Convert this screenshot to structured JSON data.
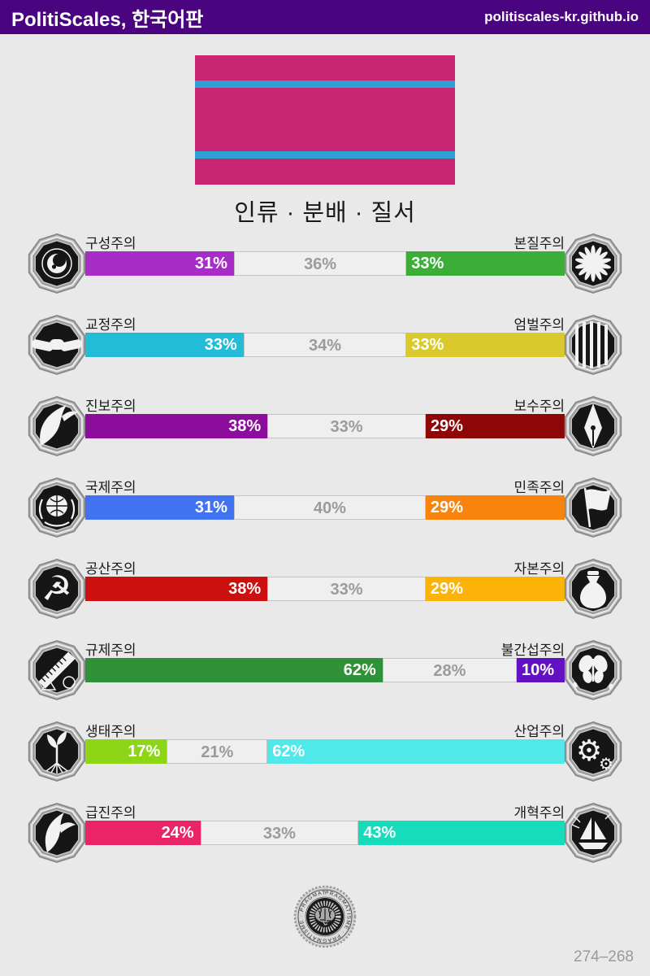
{
  "header": {
    "title": "PolitiScales, 한국어판",
    "site": "politiscales-kr.github.io",
    "bg_color": "#4a0480"
  },
  "flag": {
    "field_color": "#c82573",
    "stripe_color": "#2f9fd4"
  },
  "subtitle": "인류 · 분배 · 질서",
  "axes": [
    {
      "left": {
        "label": "구성주의",
        "value": 31,
        "value_label": "31%",
        "color": "#a82cc8",
        "icon": "eye-spiral"
      },
      "middle": {
        "value": 36,
        "value_label": "36%"
      },
      "right": {
        "label": "본질주의",
        "value": 33,
        "value_label": "33%",
        "color": "#3cae37",
        "icon": "chrysanthemum"
      }
    },
    {
      "left": {
        "label": "교정주의",
        "value": 33,
        "value_label": "33%",
        "color": "#22bcd8",
        "icon": "handshake"
      },
      "middle": {
        "value": 34,
        "value_label": "34%"
      },
      "right": {
        "label": "엄벌주의",
        "value": 33,
        "value_label": "33%",
        "color": "#d9c92d",
        "icon": "prison-bars"
      }
    },
    {
      "left": {
        "label": "진보주의",
        "value": 38,
        "value_label": "38%",
        "color": "#8c0d9c",
        "icon": "hand-releasing-bird"
      },
      "middle": {
        "value": 33,
        "value_label": "33%"
      },
      "right": {
        "label": "보수주의",
        "value": 29,
        "value_label": "29%",
        "color": "#8e0606",
        "icon": "pen-nib"
      }
    },
    {
      "left": {
        "label": "국제주의",
        "value": 31,
        "value_label": "31%",
        "color": "#4072f2",
        "icon": "globe-laurel"
      },
      "middle": {
        "value": 40,
        "value_label": "40%"
      },
      "right": {
        "label": "민족주의",
        "value": 29,
        "value_label": "29%",
        "color": "#f8840e",
        "icon": "waving-flag"
      }
    },
    {
      "left": {
        "label": "공산주의",
        "value": 38,
        "value_label": "38%",
        "color": "#cc0f0f",
        "icon": "hammer-sickle"
      },
      "middle": {
        "value": 33,
        "value_label": "33%"
      },
      "right": {
        "label": "자본주의",
        "value": 29,
        "value_label": "29%",
        "color": "#fab306",
        "icon": "money-bag"
      }
    },
    {
      "left": {
        "label": "규제주의",
        "value": 62,
        "value_label": "62%",
        "color": "#2f9138",
        "icon": "ruler-shapes"
      },
      "middle": {
        "value": 28,
        "value_label": "28%"
      },
      "right": {
        "label": "불간섭주의",
        "value": 10,
        "value_label": "10%",
        "color": "#6212c2",
        "icon": "butterflies"
      }
    },
    {
      "left": {
        "label": "생태주의",
        "value": 17,
        "value_label": "17%",
        "color": "#8cd616",
        "icon": "sprouting-tree"
      },
      "middle": {
        "value": 21,
        "value_label": "21%"
      },
      "right": {
        "label": "산업주의",
        "value": 62,
        "value_label": "62%",
        "color": "#50e8e8",
        "icon": "gears"
      }
    },
    {
      "left": {
        "label": "급진주의",
        "value": 24,
        "value_label": "24%",
        "color": "#ea2466",
        "icon": "rising-bird"
      },
      "middle": {
        "value": 33,
        "value_label": "33%"
      },
      "right": {
        "label": "개혁주의",
        "value": 43,
        "value_label": "43%",
        "color": "#16dcbc",
        "icon": "sailboat"
      }
    }
  ],
  "seal": {
    "ring_text": "PRAGMATISME",
    "ring_text_display": "PRAGMATISME · PRAGMATISME · PRAGMATISME"
  },
  "footer": {
    "result_code": "274–268"
  }
}
